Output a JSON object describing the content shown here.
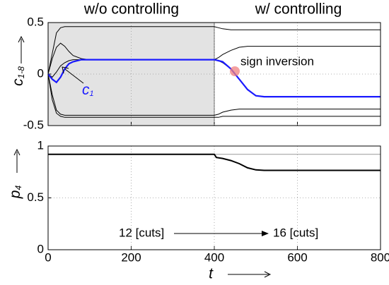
{
  "chart_data": [
    {
      "type": "line",
      "title_left": "w/o controlling",
      "title_right": "w/ controlling",
      "ylabel": "c",
      "ylabel_subscript": "1-8",
      "annotation": "c",
      "annotation_subscript": "1",
      "annotation_2": "sign inversion",
      "shaded_xrange": [
        0,
        400
      ],
      "shade_color": "#e3e3e3",
      "x": [
        0,
        10,
        20,
        30,
        40,
        50,
        60,
        80,
        100,
        150,
        200,
        300,
        400,
        410,
        420,
        440,
        460,
        480,
        500,
        520,
        600,
        800
      ],
      "series": [
        {
          "color": "#000000",
          "values": [
            0,
            0.2,
            0.4,
            0.45,
            0.46,
            0.46,
            0.46,
            0.46,
            0.46,
            0.46,
            0.46,
            0.46,
            0.46,
            0.45,
            0.44,
            0.43,
            0.43,
            0.43,
            0.43,
            0.43,
            0.43,
            0.43
          ]
        },
        {
          "color": "#000000",
          "values": [
            0,
            0.15,
            0.26,
            0.3,
            0.27,
            0.22,
            0.18,
            0.15,
            0.14,
            0.14,
            0.14,
            0.14,
            0.14,
            0.16,
            0.19,
            0.23,
            0.26,
            0.27,
            0.27,
            0.27,
            0.27,
            0.27
          ]
        },
        {
          "color": "#000000",
          "values": [
            0,
            -0.03,
            0.02,
            0.08,
            0.11,
            0.13,
            0.14,
            0.14,
            0.14,
            0.14,
            0.14,
            0.14,
            0.14,
            0.13,
            0.11,
            0.05,
            -0.05,
            -0.15,
            -0.21,
            -0.22,
            -0.22,
            -0.22
          ]
        },
        {
          "color": "#000000",
          "values": [
            0,
            -0.2,
            -0.35,
            -0.39,
            -0.4,
            -0.4,
            -0.4,
            -0.4,
            -0.4,
            -0.4,
            -0.4,
            -0.4,
            -0.4,
            -0.39,
            -0.37,
            -0.35,
            -0.34,
            -0.34,
            -0.34,
            -0.34,
            -0.34,
            -0.34
          ]
        },
        {
          "color": "#000000",
          "values": [
            0,
            -0.25,
            -0.38,
            -0.41,
            -0.42,
            -0.42,
            -0.42,
            -0.42,
            -0.42,
            -0.42,
            -0.42,
            -0.42,
            -0.42,
            -0.42,
            -0.41,
            -0.41,
            -0.41,
            -0.41,
            -0.41,
            -0.41,
            -0.41,
            -0.41
          ]
        },
        {
          "color": "#1a1aff",
          "values": [
            0,
            -0.05,
            -0.08,
            -0.03,
            0.05,
            0.1,
            0.12,
            0.14,
            0.14,
            0.14,
            0.14,
            0.14,
            0.14,
            0.13,
            0.12,
            0.05,
            -0.05,
            -0.15,
            -0.21,
            -0.22,
            -0.22,
            -0.22
          ]
        }
      ],
      "xlim": [
        0,
        800
      ],
      "xticks": [
        0,
        200,
        400,
        600,
        800
      ],
      "ylim": [
        -0.5,
        0.5
      ],
      "yticks": [
        -0.5,
        0,
        0.5
      ],
      "grid": true
    },
    {
      "type": "line",
      "ylabel": "p",
      "ylabel_subscript": "4",
      "xlabel": "t",
      "annotation_left": "12 [cuts]",
      "annotation_right": "16 [cuts]",
      "x": [
        0,
        400,
        405,
        420,
        440,
        460,
        480,
        500,
        520,
        600,
        800
      ],
      "series": [
        {
          "color": "#999999",
          "values": [
            null,
            0.92,
            0.92,
            0.92,
            0.92,
            0.92,
            0.92,
            0.92,
            0.92,
            0.92,
            0.92
          ]
        },
        {
          "color": "#000000",
          "values": [
            0.92,
            0.92,
            0.89,
            0.88,
            0.86,
            0.83,
            0.79,
            0.77,
            0.765,
            0.765,
            0.765
          ]
        }
      ],
      "xlim": [
        0,
        800
      ],
      "xticks": [
        0,
        200,
        400,
        600,
        800
      ],
      "ylim": [
        0,
        1
      ],
      "yticks": [
        0,
        0.5,
        1
      ],
      "grid": true
    }
  ]
}
